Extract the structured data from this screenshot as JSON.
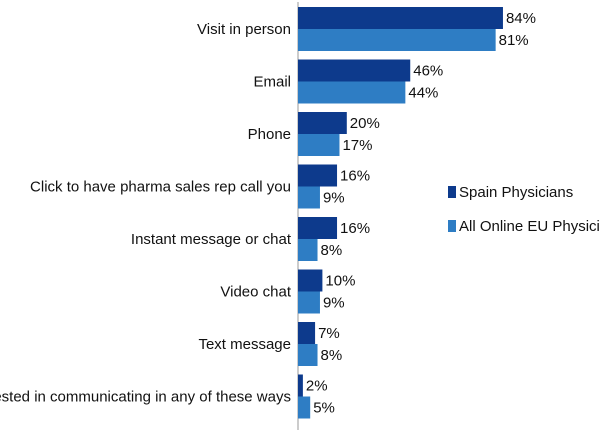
{
  "chart_data": {
    "type": "bar",
    "orientation": "horizontal",
    "categories": [
      "Visit in person",
      "Email",
      "Phone",
      "Click to have pharma sales rep call you",
      "Instant message or chat",
      "Video chat",
      "Text message",
      "Not interested in communicating in any of these ways"
    ],
    "series": [
      {
        "name": "Spain Physicians",
        "color": "#0d3a8c",
        "values": [
          84,
          46,
          20,
          16,
          16,
          10,
          7,
          2
        ]
      },
      {
        "name": "All Online EU Physicians",
        "color": "#2e7dc4",
        "values": [
          81,
          44,
          17,
          9,
          8,
          9,
          8,
          5
        ]
      }
    ],
    "value_suffix": "%",
    "xlim": [
      0,
      100
    ],
    "grid": false,
    "legend_position": "right"
  }
}
